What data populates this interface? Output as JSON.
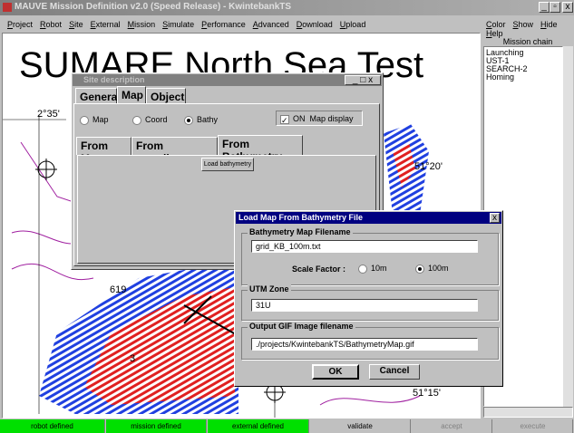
{
  "window": {
    "title": "MAUVE Mission Definition v2.0 (Speed Release) - KwintebankTS",
    "menu": [
      "Project",
      "Robot",
      "Site",
      "External",
      "Mission",
      "Simulate",
      "Perfomance",
      "Advanced",
      "Download",
      "Upload"
    ],
    "menu_right": [
      "Color",
      "Show",
      "Hide",
      "Help"
    ]
  },
  "map": {
    "title": "SUMARE North Sea Test",
    "labels": [
      "2°35'",
      "51°20'",
      "51°15'",
      "619",
      "3"
    ]
  },
  "mission_chain": {
    "header": "Mission chain",
    "items": [
      "Launching",
      "UST-1",
      "SEARCH-2",
      "Homing"
    ]
  },
  "status_bar": [
    "robot defined",
    "mission defined",
    "external defined",
    "validate",
    "accept",
    "execute"
  ],
  "site_dialog": {
    "title": "Site description",
    "tabs": [
      "General",
      "Map",
      "Object"
    ],
    "radios": [
      "Map",
      "Coord",
      "Bathy"
    ],
    "checkbox": "ON",
    "checkbox_label": "Map display",
    "subtabs": [
      "From Map",
      "From coordinates",
      "From Bathymetry"
    ],
    "button": "Load bathymetry"
  },
  "load_dialog": {
    "title": "Load Map From Bathymetry File",
    "group1": "Bathymetry Map Filename",
    "filename": "grid_KB_100m.txt",
    "scale_label": "Scale Factor :",
    "scale_options": [
      "10m",
      "100m"
    ],
    "group2": "UTM Zone",
    "utm": "31U",
    "group3": "Output GIF Image filename",
    "output": "./projects/KwintebankTS/BathymetryMap.gif",
    "buttons": [
      "OK",
      "Cancel"
    ]
  }
}
